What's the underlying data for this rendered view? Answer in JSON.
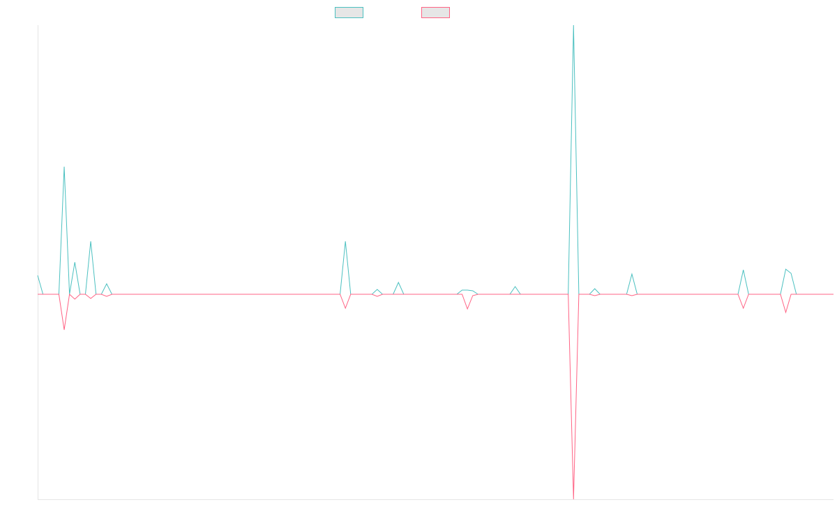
{
  "chart_data": {
    "type": "line",
    "categories": [
      null,
      null,
      null,
      null,
      null,
      null,
      null,
      null,
      null,
      null,
      null,
      null,
      null,
      null,
      null,
      null,
      null,
      null,
      null,
      null,
      null,
      null,
      null,
      null,
      null,
      null,
      null,
      null,
      null,
      null,
      null,
      null,
      null,
      null,
      null,
      null,
      null,
      null,
      null,
      null,
      null,
      null,
      null,
      null,
      null,
      null,
      null,
      null,
      null,
      null,
      null,
      null,
      null,
      null,
      null,
      null,
      null,
      null,
      null,
      null,
      null,
      null,
      null,
      null,
      null,
      null,
      null,
      null,
      null,
      null,
      null,
      null,
      null,
      null,
      null,
      null,
      null,
      null,
      null,
      null,
      null,
      null,
      null,
      null,
      null,
      null,
      null,
      null,
      null,
      null,
      null,
      null,
      null,
      null,
      null,
      null,
      null,
      null,
      null,
      null,
      null,
      null,
      null,
      null,
      null,
      null,
      null,
      null,
      null,
      null,
      null,
      null,
      null,
      null,
      null,
      null,
      null,
      null,
      null,
      null,
      null,
      null,
      null,
      null,
      null,
      null,
      null,
      null,
      null,
      null,
      null,
      null,
      null,
      null,
      null,
      null,
      null,
      null,
      null,
      null,
      null,
      null,
      null,
      null,
      null,
      null,
      null,
      null,
      null,
      null,
      null
    ],
    "series": [
      {
        "color": "#4bc0c0",
        "values": [
          27,
          0,
          0,
          0,
          0,
          183,
          0,
          46,
          0,
          0,
          76,
          0,
          0,
          15,
          0,
          0,
          0,
          0,
          0,
          0,
          0,
          0,
          0,
          0,
          0,
          0,
          0,
          0,
          0,
          0,
          0,
          0,
          0,
          0,
          0,
          0,
          0,
          0,
          0,
          0,
          0,
          0,
          0,
          0,
          0,
          0,
          0,
          0,
          0,
          0,
          0,
          0,
          0,
          0,
          0,
          0,
          0,
          0,
          76,
          0,
          0,
          0,
          0,
          0,
          7,
          0,
          0,
          0,
          17,
          0,
          0,
          0,
          0,
          0,
          0,
          0,
          0,
          0,
          0,
          0,
          6,
          6,
          5,
          0,
          0,
          0,
          0,
          0,
          0,
          0,
          11,
          0,
          0,
          0,
          0,
          0,
          0,
          0,
          0,
          0,
          0,
          386,
          0,
          0,
          0,
          8,
          0,
          0,
          0,
          0,
          0,
          0,
          29,
          0,
          0,
          0,
          0,
          0,
          0,
          0,
          0,
          0,
          0,
          0,
          0,
          0,
          0,
          0,
          0,
          0,
          0,
          0,
          0,
          35,
          0,
          0,
          0,
          0,
          0,
          0,
          0,
          36,
          30,
          0,
          0,
          0,
          0,
          0,
          0,
          0,
          0
        ]
      },
      {
        "color": "#ff6384",
        "values": [
          0,
          0,
          0,
          0,
          0,
          -51,
          0,
          -7,
          0,
          0,
          -6,
          0,
          0,
          -3,
          0,
          0,
          0,
          0,
          0,
          0,
          0,
          0,
          0,
          0,
          0,
          0,
          0,
          0,
          0,
          0,
          0,
          0,
          0,
          0,
          0,
          0,
          0,
          0,
          0,
          0,
          0,
          0,
          0,
          0,
          0,
          0,
          0,
          0,
          0,
          0,
          0,
          0,
          0,
          0,
          0,
          0,
          0,
          0,
          -20,
          0,
          0,
          0,
          0,
          0,
          -3,
          0,
          0,
          0,
          0,
          0,
          0,
          0,
          0,
          0,
          0,
          0,
          0,
          0,
          0,
          0,
          0,
          -21,
          -2,
          0,
          0,
          0,
          0,
          0,
          0,
          0,
          0,
          0,
          0,
          0,
          0,
          0,
          0,
          0,
          0,
          0,
          0,
          -294,
          0,
          0,
          0,
          -2,
          0,
          0,
          0,
          0,
          0,
          0,
          -2,
          0,
          0,
          0,
          0,
          0,
          0,
          0,
          0,
          0,
          0,
          0,
          0,
          0,
          0,
          0,
          0,
          0,
          0,
          0,
          0,
          -20,
          0,
          0,
          0,
          0,
          0,
          0,
          0,
          -26,
          0,
          0,
          0,
          0,
          0,
          0,
          0,
          0,
          0
        ]
      }
    ],
    "ylim": [
      -294,
      386
    ]
  }
}
